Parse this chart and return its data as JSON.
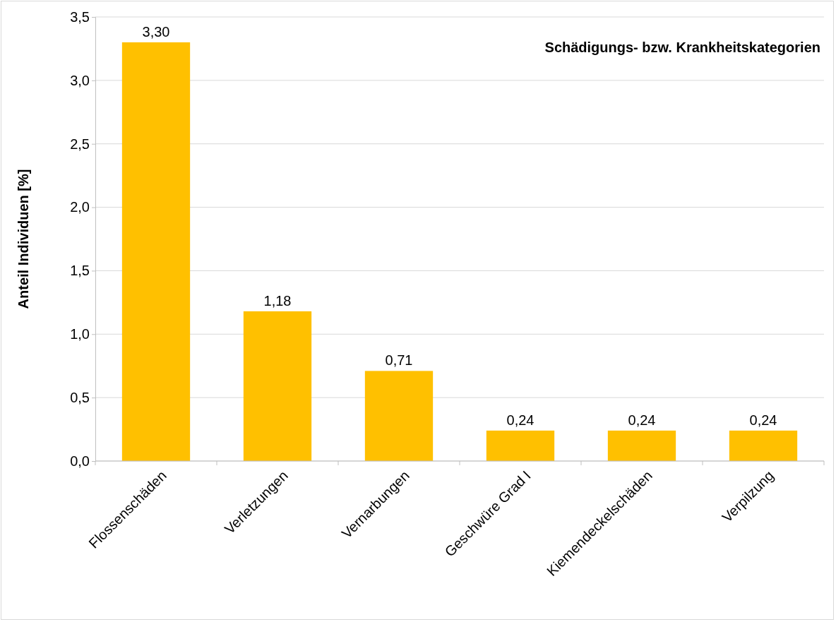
{
  "chart_data": {
    "type": "bar",
    "title": "Schädigungs- bzw. Krankheitskategorien",
    "ylabel": "Anteil Individuen [%]",
    "categories": [
      "Flossenschäden",
      "Verletzungen",
      "Vernarbungen",
      "Geschwüre Grad I",
      "Kiemendeckelschäden",
      "Verpilzung"
    ],
    "values": [
      3.3,
      1.18,
      0.71,
      0.24,
      0.24,
      0.24
    ],
    "value_labels": [
      "3,30",
      "1,18",
      "0,71",
      "0,24",
      "0,24",
      "0,24"
    ],
    "color": "#ffc000",
    "ylim": [
      0,
      3.5
    ],
    "yticks": [
      {
        "value": 0,
        "label": "0,0"
      },
      {
        "value": 0.5,
        "label": "0,5"
      },
      {
        "value": 1,
        "label": "1,0"
      },
      {
        "value": 1.5,
        "label": "1,5"
      },
      {
        "value": 2,
        "label": "2,0"
      },
      {
        "value": 2.5,
        "label": "2,5"
      },
      {
        "value": 3,
        "label": "3,0"
      },
      {
        "value": 3.5,
        "label": "3,5"
      }
    ],
    "grid": "y"
  }
}
